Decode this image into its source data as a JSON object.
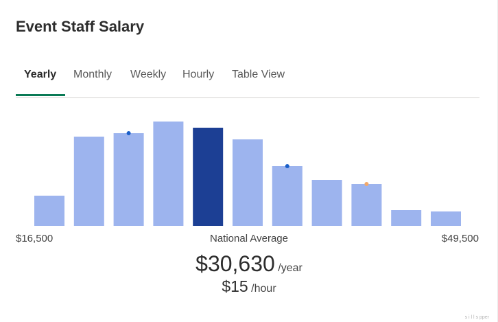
{
  "header": {
    "title": "Event Staff Salary"
  },
  "tabs": [
    {
      "label": "Yearly",
      "active": true
    },
    {
      "label": "Monthly",
      "active": false
    },
    {
      "label": "Weekly",
      "active": false
    },
    {
      "label": "Hourly",
      "active": false
    },
    {
      "label": "Table View",
      "active": false
    }
  ],
  "chart": {
    "min_label": "$16,500",
    "max_label": "$49,500",
    "average_label": "National Average"
  },
  "salary": {
    "yearly_value": "$30,630",
    "yearly_unit": "/year",
    "hourly_value": "$15",
    "hourly_unit": "/hour"
  },
  "watermark": "s i l l s pper",
  "colors": {
    "bar": "#9db4ee",
    "bar_highlight": "#1c3f94",
    "marker_blue": "#1a5fc8",
    "marker_orange": "#f2a96b",
    "tab_active_underline": "#0a7a55"
  },
  "chart_data": {
    "type": "bar",
    "title": "",
    "xlabel": "",
    "ylabel": "",
    "x_range": [
      16500,
      49500
    ],
    "categories": [
      "1",
      "2",
      "3",
      "4",
      "5",
      "6",
      "7",
      "8",
      "9",
      "10",
      "11"
    ],
    "values": [
      44,
      130,
      135,
      152,
      143,
      126,
      87,
      67,
      61,
      23,
      21
    ],
    "highlight_index": 4,
    "markers": [
      {
        "bar_index": 2,
        "color": "blue"
      },
      {
        "bar_index": 6,
        "color": "blue"
      },
      {
        "bar_index": 8,
        "color": "orange"
      }
    ],
    "grid": false,
    "legend": "none"
  }
}
